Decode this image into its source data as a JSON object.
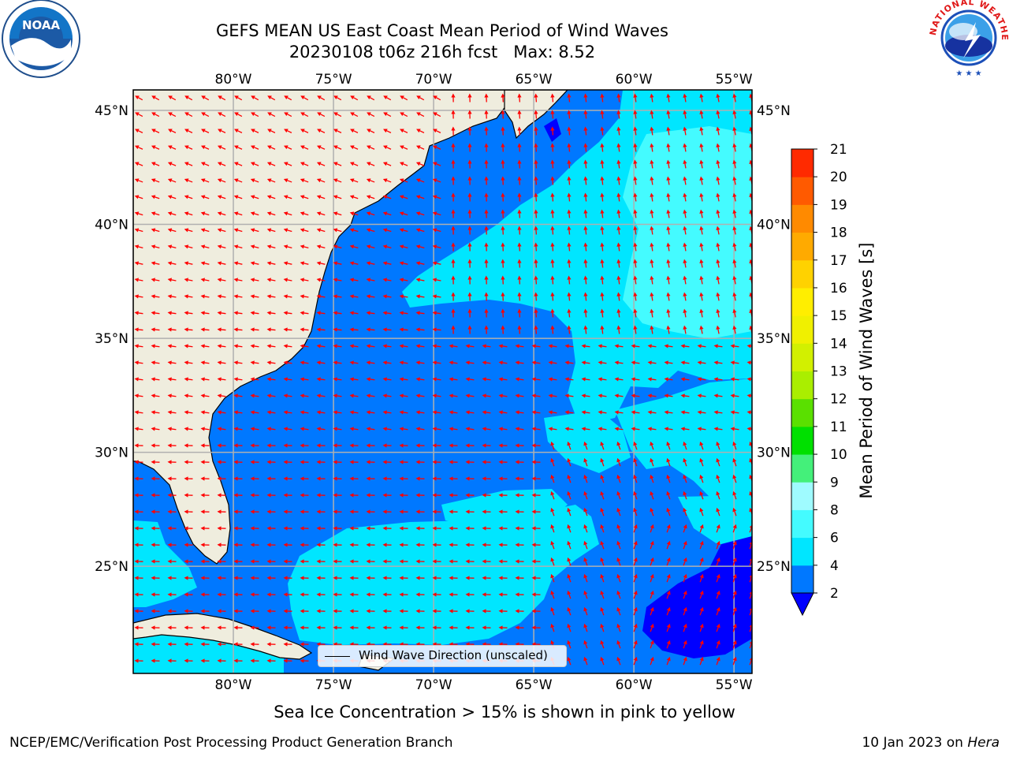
{
  "header": {
    "title_line1": "GEFS MEAN US East Coast Mean Period of Wind Waves",
    "title_line2": "20230108 t06z 216h fcst   Max: 8.52"
  },
  "logos": {
    "noaa_text": "NOAA",
    "nws_text": "NATIONAL WEATHER SERVICE"
  },
  "map": {
    "projection": "plate-carree",
    "lon_range": [
      -85,
      -54.1
    ],
    "lat_range": [
      20.3,
      45.9
    ],
    "lon_ticks": [
      "80°W",
      "75°W",
      "70°W",
      "65°W",
      "60°W",
      "55°W"
    ],
    "lat_ticks": [
      "45°N",
      "40°N",
      "35°N",
      "30°N",
      "25°N"
    ],
    "gridlines": true,
    "land_color": "#efedde",
    "arrow_color": "#ff0000",
    "legend_label": "Wind Wave Direction (unscaled)",
    "legend_placement": "bottom-center"
  },
  "colorbar": {
    "label": "Mean Period of Wind Waves [s]",
    "ticks": [
      "2",
      "4",
      "6",
      "8",
      "9",
      "10",
      "11",
      "12",
      "13",
      "14",
      "15",
      "16",
      "17",
      "18",
      "19",
      "20",
      "21"
    ],
    "colors": [
      "#0078ff",
      "#00e6ff",
      "#44fbff",
      "#9ffbff",
      "#44f07a",
      "#00e000",
      "#5ae000",
      "#aaee00",
      "#d2f000",
      "#f0f000",
      "#ffee00",
      "#ffd200",
      "#ffaa00",
      "#ff8a00",
      "#ff5a00",
      "#ff2a00",
      "#ff0000"
    ],
    "extend_color": "#0000ff"
  },
  "footer": {
    "caption": "Sea Ice Concentration > 15% is shown in pink to yellow",
    "left": "NCEP/EMC/Verification Post Processing Product Generation Branch",
    "right_date": "10 Jan 2023 on ",
    "right_host": "Hera"
  }
}
